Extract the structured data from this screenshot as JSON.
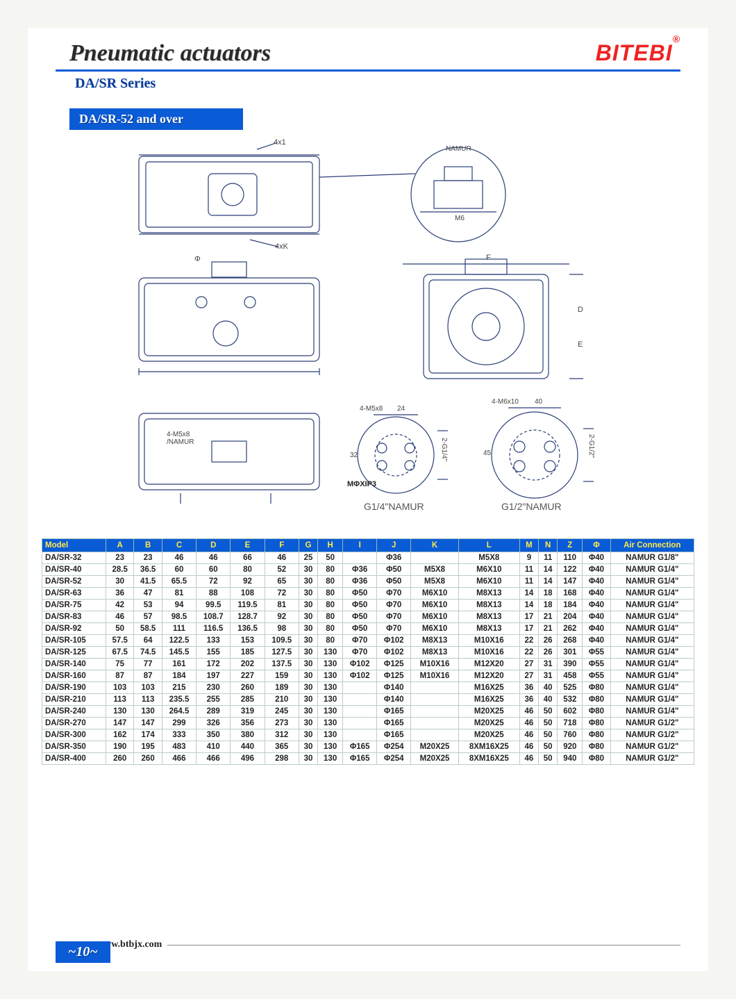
{
  "header": {
    "title": "Pneumatic actuators",
    "brand": "BITEBI",
    "brand_mark": "®",
    "title_color": "#2a2a2a",
    "brand_color": "#e22",
    "rule_color": "#0a5bd6"
  },
  "series_label": "DA/SR Series",
  "sub_header": "DA/SR-52 and over",
  "drawing": {
    "stroke": "#2a3f77",
    "annotations": {
      "top_4x1": "4x1",
      "top_4xK": "4xK",
      "namur_small": "NAMUR",
      "m6": "M6",
      "mid_phi": "Φ",
      "dims_FDE": [
        "F",
        "E",
        "D"
      ],
      "bottom_4m5x8": "4-M5x8\n/NAMUR",
      "flange1_4m5x8": "4-M5x8",
      "flange1_24": "24",
      "flange1_32": "32",
      "flange1_thread": "2-G1/4\"",
      "flange1_label": "G1/4\"NAMUR",
      "flange2_4m6x10": "4-M6x10",
      "flange2_40": "40",
      "flange2_45": "45",
      "flange2_thread": "2-G1/2\"",
      "flange2_label": "G1/2\"NAMUR",
      "modp": "MΦXIP3"
    }
  },
  "table": {
    "header_bg": "#0a5bd6",
    "header_fg": "#ffe84a",
    "columns": [
      "Model",
      "A",
      "B",
      "C",
      "D",
      "E",
      "F",
      "G",
      "H",
      "I",
      "J",
      "K",
      "L",
      "M",
      "N",
      "Z",
      "Φ",
      "Air Connection"
    ],
    "rows": [
      [
        "DA/SR-32",
        "23",
        "23",
        "46",
        "46",
        "66",
        "46",
        "25",
        "50",
        "",
        "Φ36",
        "",
        "M5X8",
        "9",
        "11",
        "110",
        "Φ40",
        "NAMUR G1/8\""
      ],
      [
        "DA/SR-40",
        "28.5",
        "36.5",
        "60",
        "60",
        "80",
        "52",
        "30",
        "80",
        "Φ36",
        "Φ50",
        "M5X8",
        "M6X10",
        "11",
        "14",
        "122",
        "Φ40",
        "NAMUR G1/4\""
      ],
      [
        "DA/SR-52",
        "30",
        "41.5",
        "65.5",
        "72",
        "92",
        "65",
        "30",
        "80",
        "Φ36",
        "Φ50",
        "M5X8",
        "M6X10",
        "11",
        "14",
        "147",
        "Φ40",
        "NAMUR G1/4\""
      ],
      [
        "DA/SR-63",
        "36",
        "47",
        "81",
        "88",
        "108",
        "72",
        "30",
        "80",
        "Φ50",
        "Φ70",
        "M6X10",
        "M8X13",
        "14",
        "18",
        "168",
        "Φ40",
        "NAMUR G1/4\""
      ],
      [
        "DA/SR-75",
        "42",
        "53",
        "94",
        "99.5",
        "119.5",
        "81",
        "30",
        "80",
        "Φ50",
        "Φ70",
        "M6X10",
        "M8X13",
        "14",
        "18",
        "184",
        "Φ40",
        "NAMUR G1/4\""
      ],
      [
        "DA/SR-83",
        "46",
        "57",
        "98.5",
        "108.7",
        "128.7",
        "92",
        "30",
        "80",
        "Φ50",
        "Φ70",
        "M6X10",
        "M8X13",
        "17",
        "21",
        "204",
        "Φ40",
        "NAMUR G1/4\""
      ],
      [
        "DA/SR-92",
        "50",
        "58.5",
        "111",
        "116.5",
        "136.5",
        "98",
        "30",
        "80",
        "Φ50",
        "Φ70",
        "M6X10",
        "M8X13",
        "17",
        "21",
        "262",
        "Φ40",
        "NAMUR G1/4\""
      ],
      [
        "DA/SR-105",
        "57.5",
        "64",
        "122.5",
        "133",
        "153",
        "109.5",
        "30",
        "80",
        "Φ70",
        "Φ102",
        "M8X13",
        "M10X16",
        "22",
        "26",
        "268",
        "Φ40",
        "NAMUR G1/4\""
      ],
      [
        "DA/SR-125",
        "67.5",
        "74.5",
        "145.5",
        "155",
        "185",
        "127.5",
        "30",
        "130",
        "Φ70",
        "Φ102",
        "M8X13",
        "M10X16",
        "22",
        "26",
        "301",
        "Φ55",
        "NAMUR G1/4\""
      ],
      [
        "DA/SR-140",
        "75",
        "77",
        "161",
        "172",
        "202",
        "137.5",
        "30",
        "130",
        "Φ102",
        "Φ125",
        "M10X16",
        "M12X20",
        "27",
        "31",
        "390",
        "Φ55",
        "NAMUR G1/4\""
      ],
      [
        "DA/SR-160",
        "87",
        "87",
        "184",
        "197",
        "227",
        "159",
        "30",
        "130",
        "Φ102",
        "Φ125",
        "M10X16",
        "M12X20",
        "27",
        "31",
        "458",
        "Φ55",
        "NAMUR G1/4\""
      ],
      [
        "DA/SR-190",
        "103",
        "103",
        "215",
        "230",
        "260",
        "189",
        "30",
        "130",
        "",
        "Φ140",
        "",
        "M16X25",
        "36",
        "40",
        "525",
        "Φ80",
        "NAMUR G1/4\""
      ],
      [
        "DA/SR-210",
        "113",
        "113",
        "235.5",
        "255",
        "285",
        "210",
        "30",
        "130",
        "",
        "Φ140",
        "",
        "M16X25",
        "36",
        "40",
        "532",
        "Φ80",
        "NAMUR G1/4\""
      ],
      [
        "DA/SR-240",
        "130",
        "130",
        "264.5",
        "289",
        "319",
        "245",
        "30",
        "130",
        "",
        "Φ165",
        "",
        "M20X25",
        "46",
        "50",
        "602",
        "Φ80",
        "NAMUR G1/4\""
      ],
      [
        "DA/SR-270",
        "147",
        "147",
        "299",
        "326",
        "356",
        "273",
        "30",
        "130",
        "",
        "Φ165",
        "",
        "M20X25",
        "46",
        "50",
        "718",
        "Φ80",
        "NAMUR G1/2\""
      ],
      [
        "DA/SR-300",
        "162",
        "174",
        "333",
        "350",
        "380",
        "312",
        "30",
        "130",
        "",
        "Φ165",
        "",
        "M20X25",
        "46",
        "50",
        "760",
        "Φ80",
        "NAMUR G1/2\""
      ],
      [
        "DA/SR-350",
        "190",
        "195",
        "483",
        "410",
        "440",
        "365",
        "30",
        "130",
        "Φ165",
        "Φ254",
        "M20X25",
        "8XM16X25",
        "46",
        "50",
        "920",
        "Φ80",
        "NAMUR G1/2\""
      ],
      [
        "DA/SR-400",
        "260",
        "260",
        "466",
        "466",
        "496",
        "298",
        "30",
        "130",
        "Φ165",
        "Φ254",
        "M20X25",
        "8XM16X25",
        "46",
        "50",
        "940",
        "Φ80",
        "NAMUR G1/2\""
      ]
    ]
  },
  "footer": {
    "url": "www.btbjx.com",
    "page": "~10~"
  }
}
